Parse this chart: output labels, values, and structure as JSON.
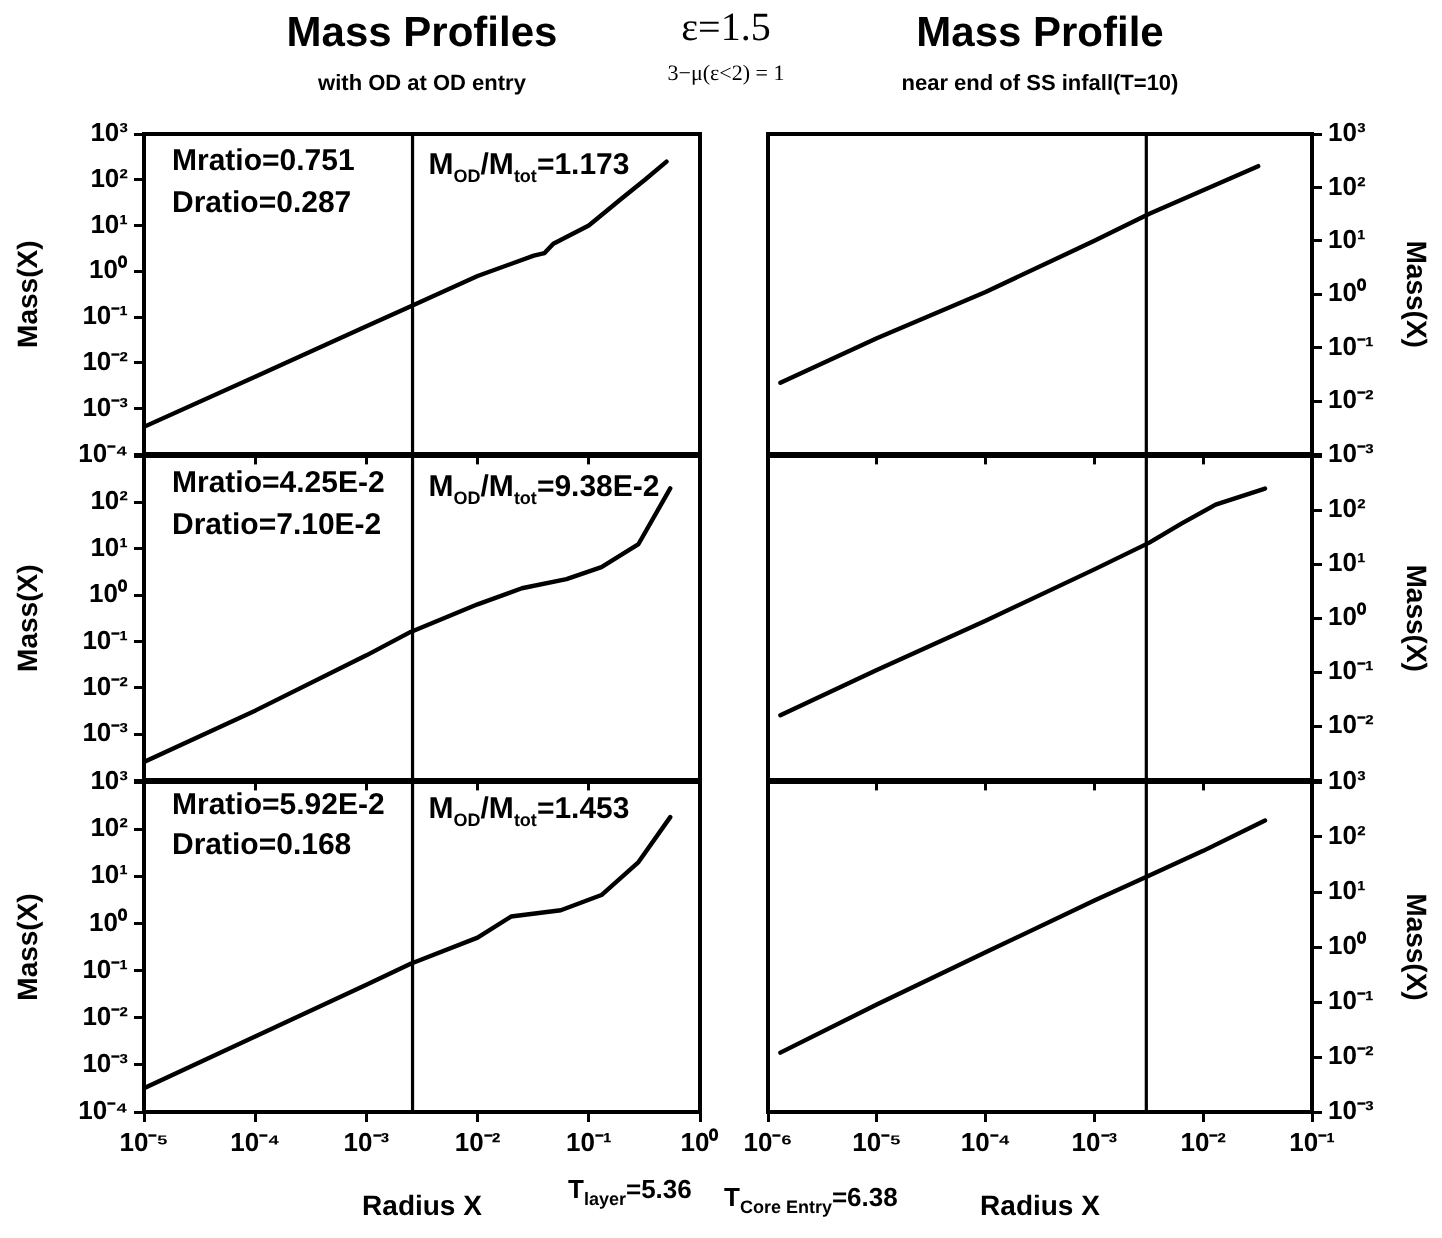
{
  "chart_data": [
    {
      "type": "line",
      "title": "Mass Profiles",
      "subtitle": "with OD at OD entry",
      "ylabel": "Mass(X)",
      "log": "xy",
      "grid": false,
      "marker": "none",
      "line_style": "solid",
      "tick_labels": "y",
      "xlim": [
        1e-05,
        1
      ],
      "xticks": [
        {
          "value": 1e-05,
          "label": null
        },
        {
          "value": 0.0001,
          "label": null
        },
        {
          "value": 0.001,
          "label": null
        },
        {
          "value": 0.01,
          "label": null
        },
        {
          "value": 0.1,
          "label": null
        },
        {
          "value": 1,
          "label": null
        }
      ],
      "ylim": [
        0.0001,
        1000
      ],
      "yticks": [
        {
          "value": 0.0001,
          "label": "10⁻⁴"
        },
        {
          "value": 0.001,
          "label": "10⁻³"
        },
        {
          "value": 0.01,
          "label": "10⁻²"
        },
        {
          "value": 0.1,
          "label": "10⁻¹"
        },
        {
          "value": 1,
          "label": "10⁰"
        },
        {
          "value": 10,
          "label": "10¹"
        },
        {
          "value": 100,
          "label": "10²"
        },
        {
          "value": 1000,
          "label": "10³"
        }
      ],
      "series": [
        {
          "color": "#000000",
          "x": [
            1e-05,
            0.0001,
            0.001,
            0.0026,
            0.01,
            0.032,
            0.04,
            0.048,
            0.1,
            0.2,
            0.32,
            0.5
          ],
          "values": [
            0.0004,
            0.005,
            0.063,
            0.18,
            0.79,
            2.2,
            2.5,
            4,
            10,
            40,
            100,
            250
          ]
        }
      ],
      "ref_lines": [
        {
          "axis": "x",
          "value": 0.0026,
          "color": "#000000"
        }
      ],
      "annotations": [
        "Mratio=0.751",
        "Dratio=0.287",
        "M$_{OD}$/M$_{tot}$=1.173",
        "ε=1.5",
        "3−μ(ε<2) = 1"
      ]
    },
    {
      "type": "line",
      "title": "Mass Profile",
      "subtitle": "near end of SS infall(T=10)",
      "ylabel": "Mass(X)",
      "log": "xy",
      "grid": false,
      "marker": "none",
      "line_style": "solid",
      "tick_labels": "y",
      "xlim": [
        1e-06,
        0.1
      ],
      "xticks": [
        {
          "value": 1e-06,
          "label": null
        },
        {
          "value": 1e-05,
          "label": null
        },
        {
          "value": 0.0001,
          "label": null
        },
        {
          "value": 0.001,
          "label": null
        },
        {
          "value": 0.01,
          "label": null
        },
        {
          "value": 0.1,
          "label": null
        }
      ],
      "ylim": [
        0.001,
        1000
      ],
      "yticks": [
        {
          "value": 0.001,
          "label": "10⁻³"
        },
        {
          "value": 0.01,
          "label": "10⁻²"
        },
        {
          "value": 0.1,
          "label": "10⁻¹"
        },
        {
          "value": 1,
          "label": "10⁰"
        },
        {
          "value": 10,
          "label": "10¹"
        },
        {
          "value": 100,
          "label": "10²"
        },
        {
          "value": 1000,
          "label": "10³"
        }
      ],
      "series": [
        {
          "color": "#000000",
          "x": [
            1.3e-06,
            1e-05,
            0.0001,
            0.001,
            0.0032,
            0.032
          ],
          "values": [
            0.022,
            0.15,
            1.1,
            10,
            32,
            250
          ]
        }
      ],
      "ref_lines": [
        {
          "axis": "x",
          "value": 0.003,
          "color": "#000000"
        }
      ]
    },
    {
      "type": "line",
      "ylabel": "Mass(X)",
      "log": "xy",
      "grid": false,
      "marker": "none",
      "line_style": "solid",
      "tick_labels": "y",
      "xlim": [
        1e-05,
        1
      ],
      "xticks": [
        {
          "value": 1e-05,
          "label": null
        },
        {
          "value": 0.0001,
          "label": null
        },
        {
          "value": 0.001,
          "label": null
        },
        {
          "value": 0.01,
          "label": null
        },
        {
          "value": 0.1,
          "label": null
        },
        {
          "value": 1,
          "label": null
        }
      ],
      "ylim": [
        0.0001,
        1000
      ],
      "yticks": [
        {
          "value": 0.0001,
          "label": null
        },
        {
          "value": 0.001,
          "label": "10⁻³"
        },
        {
          "value": 0.01,
          "label": "10⁻²"
        },
        {
          "value": 0.1,
          "label": "10⁻¹"
        },
        {
          "value": 1,
          "label": "10⁰"
        },
        {
          "value": 10,
          "label": "10¹"
        },
        {
          "value": 100,
          "label": "10²"
        },
        {
          "value": 1000,
          "label": null
        }
      ],
      "series": [
        {
          "color": "#000000",
          "x": [
            1e-05,
            0.0001,
            0.001,
            0.0025,
            0.01,
            0.025,
            0.063,
            0.13,
            0.28,
            0.54
          ],
          "values": [
            0.00025,
            0.0032,
            0.05,
            0.16,
            0.63,
            1.4,
            2.2,
            4,
            12.6,
            200
          ]
        }
      ],
      "ref_lines": [
        {
          "axis": "x",
          "value": 0.0026,
          "color": "#000000"
        }
      ],
      "annotations": [
        "Mratio=4.25E-2",
        "Dratio=7.10E-2",
        "M$_{OD}$/M$_{tot}$=9.38E-2"
      ]
    },
    {
      "type": "line",
      "ylabel": "Mass(X)",
      "log": "xy",
      "grid": false,
      "marker": "none",
      "line_style": "solid",
      "tick_labels": "y",
      "xlim": [
        1e-06,
        0.1
      ],
      "xticks": [
        {
          "value": 1e-06,
          "label": null
        },
        {
          "value": 1e-05,
          "label": null
        },
        {
          "value": 0.0001,
          "label": null
        },
        {
          "value": 0.001,
          "label": null
        },
        {
          "value": 0.01,
          "label": null
        },
        {
          "value": 0.1,
          "label": null
        }
      ],
      "ylim": [
        0.001,
        1000
      ],
      "yticks": [
        {
          "value": 0.001,
          "label": null
        },
        {
          "value": 0.01,
          "label": "10⁻²"
        },
        {
          "value": 0.1,
          "label": "10⁻¹"
        },
        {
          "value": 1,
          "label": "10⁰"
        },
        {
          "value": 10,
          "label": "10¹"
        },
        {
          "value": 100,
          "label": "10²"
        },
        {
          "value": 1000,
          "label": null
        }
      ],
      "series": [
        {
          "color": "#000000",
          "x": [
            1.3e-06,
            1e-05,
            0.0001,
            0.001,
            0.0032,
            0.0063,
            0.013,
            0.037
          ],
          "values": [
            0.016,
            0.11,
            0.9,
            8,
            25,
            56,
            126,
            250
          ]
        }
      ],
      "ref_lines": [
        {
          "axis": "x",
          "value": 0.003,
          "color": "#000000"
        }
      ]
    },
    {
      "type": "line",
      "xlabel": "Radius X",
      "ylabel": "Mass(X)",
      "log": "xy",
      "grid": false,
      "marker": "none",
      "line_style": "solid",
      "xlim": [
        1e-05,
        1
      ],
      "xticks": [
        {
          "value": 1e-05,
          "label": "10⁻⁵"
        },
        {
          "value": 0.0001,
          "label": "10⁻⁴"
        },
        {
          "value": 0.001,
          "label": "10⁻³"
        },
        {
          "value": 0.01,
          "label": "10⁻²"
        },
        {
          "value": 0.1,
          "label": "10⁻¹"
        },
        {
          "value": 1,
          "label": "10⁰"
        }
      ],
      "ylim": [
        0.0001,
        1000
      ],
      "yticks": [
        {
          "value": 0.0001,
          "label": "10⁻⁴"
        },
        {
          "value": 0.001,
          "label": "10⁻³"
        },
        {
          "value": 0.01,
          "label": "10⁻²"
        },
        {
          "value": 0.1,
          "label": "10⁻¹"
        },
        {
          "value": 1,
          "label": "10⁰"
        },
        {
          "value": 10,
          "label": "10¹"
        },
        {
          "value": 100,
          "label": "10²"
        },
        {
          "value": 1000,
          "label": "10³"
        }
      ],
      "series": [
        {
          "color": "#000000",
          "x": [
            1e-05,
            0.0001,
            0.001,
            0.0025,
            0.01,
            0.02,
            0.056,
            0.13,
            0.28,
            0.54
          ],
          "values": [
            0.00032,
            0.004,
            0.05,
            0.14,
            0.5,
            1.4,
            1.9,
            4,
            20,
            180
          ]
        }
      ],
      "ref_lines": [
        {
          "axis": "x",
          "value": 0.0026,
          "color": "#000000"
        }
      ],
      "annotations": [
        "Mratio=5.92E-2",
        "Dratio=0.168",
        "M$_{OD}$/M$_{tot}$=1.453",
        "T$_{layer}$=5.36"
      ]
    },
    {
      "type": "line",
      "xlabel": "Radius X",
      "ylabel": "Mass(X)",
      "log": "xy",
      "grid": false,
      "marker": "none",
      "line_style": "solid",
      "xlim": [
        1e-06,
        0.1
      ],
      "xticks": [
        {
          "value": 1e-06,
          "label": "10⁻⁶"
        },
        {
          "value": 1e-05,
          "label": "10⁻⁵"
        },
        {
          "value": 0.0001,
          "label": "10⁻⁴"
        },
        {
          "value": 0.001,
          "label": "10⁻³"
        },
        {
          "value": 0.01,
          "label": "10⁻²"
        },
        {
          "value": 0.1,
          "label": "10⁻¹"
        }
      ],
      "ylim": [
        0.001,
        1000
      ],
      "yticks": [
        {
          "value": 0.001,
          "label": "10⁻³"
        },
        {
          "value": 0.01,
          "label": "10⁻²"
        },
        {
          "value": 0.1,
          "label": "10⁻¹"
        },
        {
          "value": 1,
          "label": "10⁰"
        },
        {
          "value": 10,
          "label": "10¹"
        },
        {
          "value": 100,
          "label": "10²"
        },
        {
          "value": 1000,
          "label": "10³"
        }
      ],
      "series": [
        {
          "color": "#000000",
          "x": [
            1.3e-06,
            1e-05,
            0.0001,
            0.001,
            0.0032,
            0.01,
            0.037
          ],
          "values": [
            0.012,
            0.09,
            0.8,
            7,
            20,
            56,
            200
          ]
        }
      ],
      "ref_lines": [
        {
          "axis": "x",
          "value": 0.003,
          "color": "#000000"
        }
      ],
      "annotations": [
        "T$_{Core Entry}$=6.38"
      ]
    }
  ]
}
